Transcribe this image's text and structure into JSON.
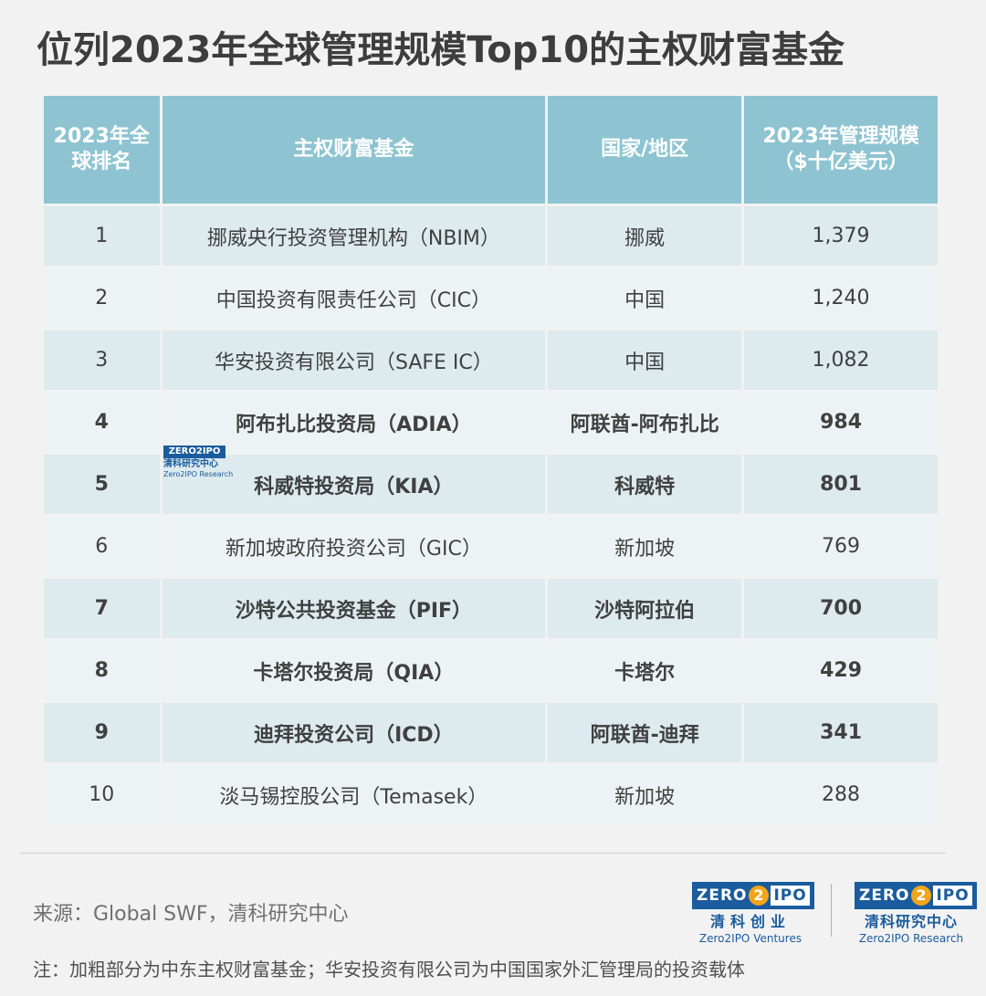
{
  "title": "位列2023年全球管理规模Top10的主权财富基金",
  "table": {
    "headers": {
      "rank": "2023年全球排名",
      "fund": "主权财富基金",
      "country": "国家/地区",
      "aum": "2023年管理规模（$十亿美元）"
    },
    "rows": [
      {
        "rank": "1",
        "fund": "挪威央行投资管理机构（NBIM）",
        "country": "挪威",
        "aum": "1,379",
        "middle_east": false
      },
      {
        "rank": "2",
        "fund": "中国投资有限责任公司（CIC）",
        "country": "中国",
        "aum": "1,240",
        "middle_east": false
      },
      {
        "rank": "3",
        "fund": "华安投资有限公司（SAFE IC）",
        "country": "中国",
        "aum": "1,082",
        "middle_east": false
      },
      {
        "rank": "4",
        "fund": "阿布扎比投资局（ADIA）",
        "country": "阿联酋-阿布扎比",
        "aum": "984",
        "middle_east": true
      },
      {
        "rank": "5",
        "fund": "科威特投资局（KIA）",
        "country": "科威特",
        "aum": "801",
        "middle_east": true
      },
      {
        "rank": "6",
        "fund": "新加坡政府投资公司（GIC）",
        "country": "新加坡",
        "aum": "769",
        "middle_east": false
      },
      {
        "rank": "7",
        "fund": "沙特公共投资基金（PIF）",
        "country": "沙特阿拉伯",
        "aum": "700",
        "middle_east": true
      },
      {
        "rank": "8",
        "fund": "卡塔尔投资局（QIA）",
        "country": "卡塔尔",
        "aum": "429",
        "middle_east": true
      },
      {
        "rank": "9",
        "fund": "迪拜投资公司（ICD）",
        "country": "阿联酋-迪拜",
        "aum": "341",
        "middle_east": true
      },
      {
        "rank": "10",
        "fund": "淡马锡控股公司（Temasek）",
        "country": "新加坡",
        "aum": "288",
        "middle_east": false
      }
    ]
  },
  "watermark": {
    "wordmark": "ZERO2IPO",
    "cn": "清科研究中心",
    "en": "Zero2IPO Research"
  },
  "footer": {
    "source": "来源：Global SWF，清科研究中心",
    "note": "注：加粗部分为中东主权财富基金；华安投资有限公司为中国国家外汇管理局的投资载体"
  },
  "logos": [
    {
      "zero": "ZERO",
      "two": "2",
      "ipo": "IPO",
      "cn": "清科创业",
      "en": "Zero2IPO Ventures"
    },
    {
      "zero": "ZERO",
      "two": "2",
      "ipo": "IPO",
      "cn": "清科研究中心",
      "en": "Zero2IPO Research"
    }
  ],
  "colors": {
    "header_bg": "#8ec4d1",
    "row_odd": "#ddeaee",
    "row_even": "#edf3f5",
    "brand_blue": "#1a5c9e",
    "brand_orange": "#f3a51a"
  }
}
